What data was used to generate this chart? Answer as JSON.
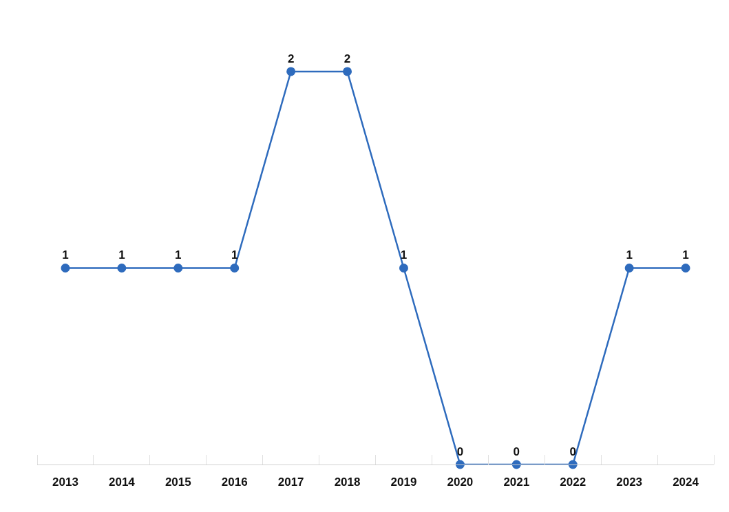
{
  "chart_data": {
    "type": "line",
    "categories": [
      "2013",
      "2014",
      "2015",
      "2016",
      "2017",
      "2018",
      "2019",
      "2020",
      "2021",
      "2022",
      "2023",
      "2024"
    ],
    "series": [
      {
        "color": "#2e6bbd",
        "values": [
          1,
          1,
          1,
          1,
          2,
          2,
          1,
          0,
          0,
          0,
          1,
          1
        ]
      }
    ],
    "data_labels": true,
    "marker": "circle",
    "line_style": "solid",
    "grid": false
  }
}
